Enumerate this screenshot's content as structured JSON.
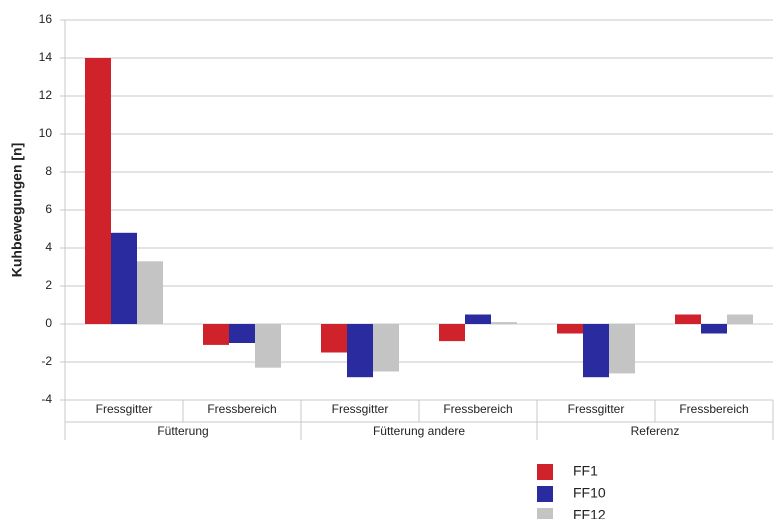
{
  "chart_data": {
    "type": "bar",
    "y_label": "Kuhbewegungen [n]",
    "categories": [
      "Fressgitter",
      "Fressbereich",
      "Fressgitter",
      "Fressbereich",
      "Fressgitter",
      "Fressbereich"
    ],
    "groups": [
      "Fütterung",
      "Fütterung andere",
      "Referenz"
    ],
    "series": [
      {
        "name": "FF1",
        "color": "#d0222a",
        "values": [
          14,
          -1.1,
          -1.5,
          -0.9,
          -0.5,
          0.5
        ]
      },
      {
        "name": "FF10",
        "color": "#2b2ba0",
        "values": [
          4.8,
          -1.0,
          -2.8,
          0.5,
          -2.8,
          -0.5
        ]
      },
      {
        "name": "FF12",
        "color": "#c4c4c4",
        "values": [
          3.3,
          -2.3,
          -2.5,
          0.1,
          -2.6,
          0.5
        ]
      }
    ],
    "ylim": [
      -4,
      16
    ],
    "yticks": [
      -4,
      -2,
      0,
      2,
      4,
      6,
      8,
      10,
      12,
      14,
      16
    ],
    "grid": true
  }
}
